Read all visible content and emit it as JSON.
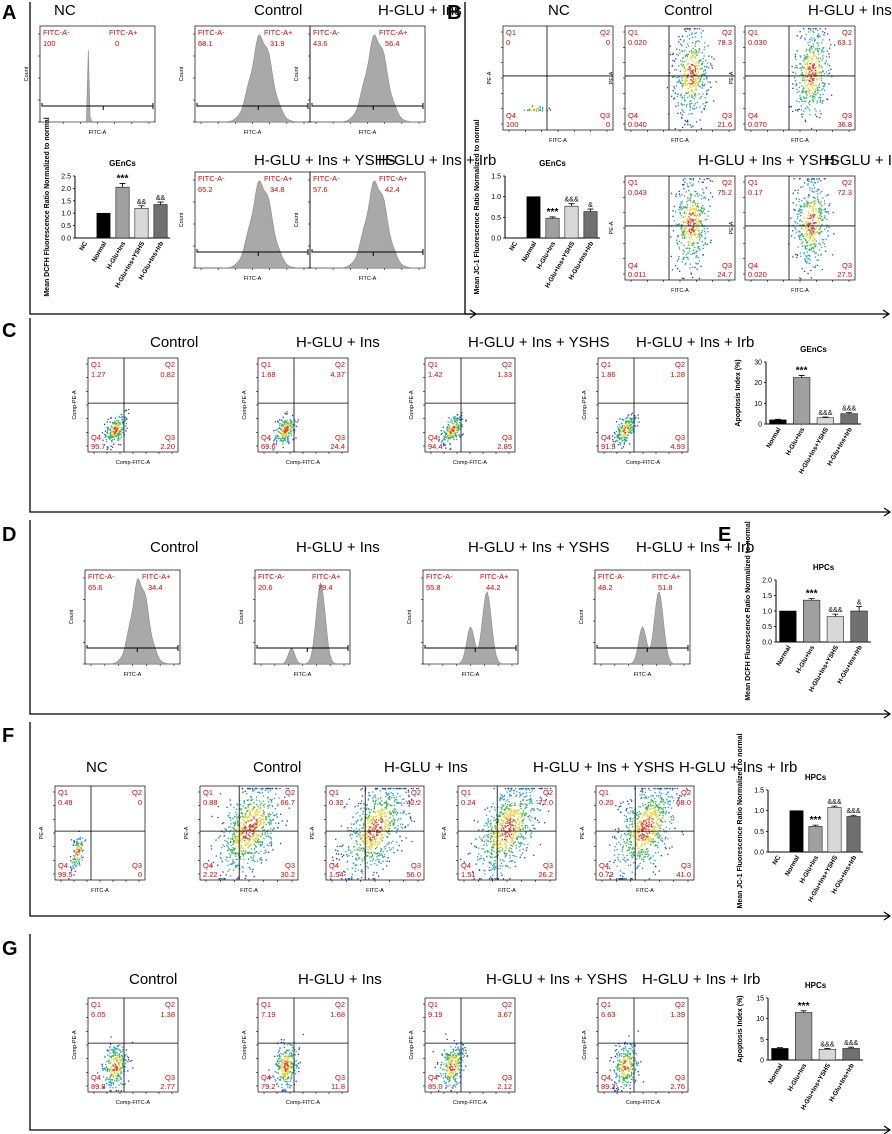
{
  "panel_letters": [
    "A",
    "B",
    "C",
    "D",
    "E",
    "F",
    "G"
  ],
  "bar_label": "GEnCs",
  "chart_data": [
    {
      "id": "A-NC",
      "type": "histogram",
      "title": "NC",
      "gate": [
        "FITC-A-",
        "FITC-A+"
      ],
      "values": [
        "100",
        "0"
      ],
      "xlabel": "FITC-A",
      "ylabel": "Count",
      "shape": "spike"
    },
    {
      "id": "A-Ctrl",
      "type": "histogram",
      "title": "Control",
      "gate": [
        "FITC-A-",
        "FITC-A+"
      ],
      "values": [
        "68.1",
        "31.9"
      ],
      "xlabel": "FITC-A",
      "ylabel": "Count",
      "shape": "wide"
    },
    {
      "id": "A-HGI",
      "type": "histogram",
      "title": "H-GLU + Ins",
      "gate": [
        "FITC-A-",
        "FITC-A+"
      ],
      "values": [
        "43.6",
        "56.4"
      ],
      "xlabel": "FITC-A",
      "ylabel": "Count",
      "shape": "wide"
    },
    {
      "id": "A-YSHS",
      "type": "histogram",
      "title": "H-GLU + Ins + YSHS",
      "gate": [
        "FITC-A-",
        "FITC-A+"
      ],
      "values": [
        "65.2",
        "34.8"
      ],
      "xlabel": "FITC-A",
      "ylabel": "Count",
      "shape": "wide"
    },
    {
      "id": "A-Irb",
      "type": "histogram",
      "title": "H-GLU + Ins + Irb",
      "gate": [
        "FITC-A-",
        "FITC-A+"
      ],
      "values": [
        "57.6",
        "42.4"
      ],
      "xlabel": "FITC-A",
      "ylabel": "Count",
      "shape": "wide"
    },
    {
      "id": "A-bar",
      "type": "bar",
      "title": "GEnCs",
      "ylabel": "Mean DCFH Fluorescence Ratio Normalized to normal",
      "categories": [
        "NC",
        "Normal",
        "H-Glu+Ins",
        "H-Glu+Ins+YSHS",
        "H-Glu+Ins+Irb"
      ],
      "values": [
        0,
        1.0,
        2.05,
        1.2,
        1.35
      ],
      "errors": [
        0,
        0,
        0.15,
        0.1,
        0.1
      ],
      "annotations": [
        "",
        "",
        "***",
        "&&",
        "&&"
      ],
      "colors": [
        "#000000",
        "#000000",
        "#a0a0a0",
        "#d8d8d8",
        "#707070"
      ],
      "yticks": [
        "0.0",
        "0.5",
        "1.0",
        "1.5",
        "2.0",
        "2.5"
      ],
      "ylim": [
        0,
        2.5
      ]
    },
    {
      "id": "B-NC",
      "type": "quadrant",
      "title": "NC",
      "xlabel": "FITC-A",
      "ylabel": "PE-A",
      "quads": [
        "Q1",
        "Q2",
        "Q3",
        "Q4"
      ],
      "values": [
        "0",
        "0",
        "0",
        "100"
      ],
      "cloud": "tiny"
    },
    {
      "id": "B-Ctrl",
      "type": "quadrant",
      "title": "Control",
      "xlabel": "FITC-A",
      "ylabel": "PE-A",
      "quads": [
        "Q1",
        "Q2",
        "Q3",
        "Q4"
      ],
      "values": [
        "0.020",
        "78.3",
        "21.6",
        "0.040"
      ],
      "cloud": "bright"
    },
    {
      "id": "B-HGI",
      "type": "quadrant",
      "title": "H-GLU + Ins",
      "xlabel": "FITC-A",
      "ylabel": "PE-A",
      "quads": [
        "Q1",
        "Q2",
        "Q3",
        "Q4"
      ],
      "values": [
        "0.030",
        "63.1",
        "36.8",
        "0.070"
      ],
      "cloud": "bright"
    },
    {
      "id": "B-YSHS",
      "type": "quadrant",
      "title": "H-GLU + Ins + YSHS",
      "xlabel": "FITC-A",
      "ylabel": "PE-A",
      "quads": [
        "Q1",
        "Q2",
        "Q3",
        "Q4"
      ],
      "values": [
        "0.043",
        "75.2",
        "24.7",
        "0.011"
      ],
      "cloud": "bright"
    },
    {
      "id": "B-Irb",
      "type": "quadrant",
      "title": "H-GLU + Ins + Irb",
      "xlabel": "FITC-A",
      "ylabel": "PE-A",
      "quads": [
        "Q1",
        "Q2",
        "Q3",
        "Q4"
      ],
      "values": [
        "0.17",
        "72.3",
        "27.5",
        "0.020"
      ],
      "cloud": "bright"
    },
    {
      "id": "B-bar",
      "type": "bar",
      "title": "GEnCs",
      "ylabel": "Mean JC-1 Fluorescence Ratio Normalized to normal",
      "categories": [
        "NC",
        "Normal",
        "H-Glu+Ins",
        "H-Glu+Ins+YSHS",
        "H-Glu+Ins+Irb"
      ],
      "values": [
        0,
        1.0,
        0.48,
        0.77,
        0.64
      ],
      "errors": [
        0,
        0,
        0.03,
        0.06,
        0.06
      ],
      "annotations": [
        "",
        "",
        "***",
        "&&&",
        "&"
      ],
      "colors": [
        "#000000",
        "#000000",
        "#a0a0a0",
        "#d8d8d8",
        "#707070"
      ],
      "yticks": [
        "0.0",
        "0.5",
        "1.0",
        "1.5"
      ],
      "ylim": [
        0,
        1.5
      ]
    },
    {
      "id": "C-Ctrl",
      "type": "quadrant",
      "title": "Control",
      "xlabel": "Comp-FITC-A",
      "ylabel": "Comp-PE-A",
      "quads": [
        "Q1",
        "Q2",
        "Q3",
        "Q4"
      ],
      "values": [
        "1.27",
        "0.82",
        "2.20",
        "95.7"
      ],
      "cloud": "low"
    },
    {
      "id": "C-HGI",
      "type": "quadrant",
      "title": "H-GLU + Ins",
      "xlabel": "Comp-FITC-A",
      "ylabel": "Comp-PE-A",
      "quads": [
        "Q1",
        "Q2",
        "Q3",
        "Q4"
      ],
      "values": [
        "1.68",
        "4.37",
        "24.4",
        "69.6"
      ],
      "cloud": "low"
    },
    {
      "id": "C-YSHS",
      "type": "quadrant",
      "title": "H-GLU + Ins + YSHS",
      "xlabel": "Comp-FITC-A",
      "ylabel": "Comp-PE-A",
      "quads": [
        "Q1",
        "Q2",
        "Q3",
        "Q4"
      ],
      "values": [
        "1.42",
        "1.33",
        "2.85",
        "94.4"
      ],
      "cloud": "low"
    },
    {
      "id": "C-Irb",
      "type": "quadrant",
      "title": "H-GLU + Ins + Irb",
      "xlabel": "Comp-FITC-A",
      "ylabel": "Comp-PE-A",
      "quads": [
        "Q1",
        "Q2",
        "Q3",
        "Q4"
      ],
      "values": [
        "1.86",
        "1.28",
        "4.93",
        "91.9"
      ],
      "cloud": "low"
    },
    {
      "id": "C-bar",
      "type": "bar",
      "title": "GEnCs",
      "ylabel": "Apoptosis Index (%)",
      "categories": [
        "Normal",
        "H-Glu+Ins",
        "H-Glu+Ins+YSHS",
        "H-Glu+Ins+Irb"
      ],
      "values": [
        2,
        22.5,
        3,
        5
      ],
      "errors": [
        0.3,
        1,
        0.4,
        0.5
      ],
      "annotations": [
        "",
        "***",
        "&&&",
        "&&&"
      ],
      "colors": [
        "#000000",
        "#a0a0a0",
        "#d8d8d8",
        "#707070"
      ],
      "yticks": [
        "0",
        "10",
        "20",
        "30"
      ],
      "ylim": [
        0,
        30
      ]
    },
    {
      "id": "D-Ctrl",
      "type": "histogram",
      "title": "Control",
      "gate": [
        "FITC-A-",
        "FITC-A+"
      ],
      "values": [
        "65.6",
        "34.4"
      ],
      "xlabel": "FITC-A",
      "ylabel": "Count",
      "shape": "wide"
    },
    {
      "id": "D-HGI",
      "type": "histogram",
      "title": "H-GLU + Ins",
      "gate": [
        "FITC-A-",
        "FITC-A+"
      ],
      "values": [
        "20.6",
        "79.4"
      ],
      "xlabel": "FITC-A",
      "ylabel": "Count",
      "shape": "right"
    },
    {
      "id": "D-YSHS",
      "type": "histogram",
      "title": "H-GLU + Ins + YSHS",
      "gate": [
        "FITC-A-",
        "FITC-A+"
      ],
      "values": [
        "55.8",
        "44.2"
      ],
      "xlabel": "FITC-A",
      "ylabel": "Count",
      "shape": "double"
    },
    {
      "id": "D-Irb",
      "type": "histogram",
      "title": "H-GLU + Ins + Irb",
      "gate": [
        "FITC-A-",
        "FITC-A+"
      ],
      "values": [
        "48.2",
        "51.8"
      ],
      "xlabel": "FITC-A",
      "ylabel": "Count",
      "shape": "double"
    },
    {
      "id": "E-bar",
      "type": "bar",
      "title": "HPCs",
      "ylabel": "Mean DCFH Fluorescence Ratio Normalized to normal",
      "categories": [
        "Normal",
        "H-Glu+Ins",
        "H-Glu+Ins+YSHS",
        "H-Glu+Ins+Irb"
      ],
      "values": [
        1.0,
        1.35,
        0.82,
        1.0
      ],
      "errors": [
        0,
        0.05,
        0.08,
        0.15
      ],
      "annotations": [
        "",
        "***",
        "&&&",
        "&"
      ],
      "colors": [
        "#000000",
        "#a0a0a0",
        "#d8d8d8",
        "#707070"
      ],
      "yticks": [
        "0.0",
        "0.5",
        "1.0",
        "1.5",
        "2.0"
      ],
      "ylim": [
        0,
        2.0
      ]
    },
    {
      "id": "F-NC",
      "type": "quadrant",
      "title": "NC",
      "xlabel": "FITC-A",
      "ylabel": "PE-A",
      "quads": [
        "Q1",
        "Q2",
        "Q3",
        "Q4"
      ],
      "values": [
        "0.49",
        "0",
        "0",
        "99.5"
      ],
      "cloud": "small"
    },
    {
      "id": "F-Ctrl",
      "type": "quadrant",
      "title": "Control",
      "xlabel": "FITC-A",
      "ylabel": "PE-A",
      "quads": [
        "Q1",
        "Q2",
        "Q3",
        "Q4"
      ],
      "values": [
        "0.88",
        "66.7",
        "30.2",
        "2.22"
      ],
      "cloud": "diag"
    },
    {
      "id": "F-HGI",
      "type": "quadrant",
      "title": "H-GLU + Ins",
      "xlabel": "FITC-A",
      "ylabel": "PE-A",
      "quads": [
        "Q1",
        "Q2",
        "Q3",
        "Q4"
      ],
      "values": [
        "0.32",
        "42.2",
        "56.0",
        "1.54"
      ],
      "cloud": "diag"
    },
    {
      "id": "F-YSHS",
      "type": "quadrant",
      "title": "H-GLU + Ins + YSHS",
      "xlabel": "FITC-A",
      "ylabel": "PE-A",
      "quads": [
        "Q1",
        "Q2",
        "Q3",
        "Q4"
      ],
      "values": [
        "0.24",
        "72.0",
        "26.2",
        "1.51"
      ],
      "cloud": "diag"
    },
    {
      "id": "F-Irb",
      "type": "quadrant",
      "title": "H-GLU + Ins + Irb",
      "xlabel": "FITC-A",
      "ylabel": "PE-A",
      "quads": [
        "Q1",
        "Q2",
        "Q3",
        "Q4"
      ],
      "values": [
        "0.20",
        "58.0",
        "41.0",
        "0.72"
      ],
      "cloud": "diag"
    },
    {
      "id": "F-bar",
      "type": "bar",
      "title": "HPCs",
      "ylabel": "Mean JC-1 Fluorescence Ratio Normalized to normal",
      "categories": [
        "NC",
        "Normal",
        "H-Glu+Ins",
        "H-Glu+Ins+YSHS",
        "H-Glu+Ins+Irb"
      ],
      "values": [
        0,
        1.0,
        0.62,
        1.08,
        0.86
      ],
      "errors": [
        0,
        0,
        0.03,
        0.03,
        0.03
      ],
      "annotations": [
        "",
        "",
        "***",
        "&&&",
        "&&&"
      ],
      "colors": [
        "#000000",
        "#000000",
        "#a0a0a0",
        "#d8d8d8",
        "#707070"
      ],
      "yticks": [
        "0.0",
        "0.5",
        "1.0",
        "1.5"
      ],
      "ylim": [
        0,
        1.5
      ]
    },
    {
      "id": "G-Ctrl",
      "type": "quadrant",
      "title": "Control",
      "xlabel": "Comp-FITC-A",
      "ylabel": "Comp-PE-A",
      "quads": [
        "Q1",
        "Q2",
        "Q3",
        "Q4"
      ],
      "values": [
        "6.05",
        "1.38",
        "2.77",
        "89.8"
      ],
      "cloud": "lowtall"
    },
    {
      "id": "G-HGI",
      "type": "quadrant",
      "title": "H-GLU + Ins",
      "xlabel": "Comp-FITC-A",
      "ylabel": "Comp-PE-A",
      "quads": [
        "Q1",
        "Q2",
        "Q3",
        "Q4"
      ],
      "values": [
        "7.19",
        "1.68",
        "11.8",
        "79.2"
      ],
      "cloud": "lowtall"
    },
    {
      "id": "G-YSHS",
      "type": "quadrant",
      "title": "H-GLU + Ins + YSHS",
      "xlabel": "Comp-FITC-A",
      "ylabel": "Comp-PE-A",
      "quads": [
        "Q1",
        "Q2",
        "Q3",
        "Q4"
      ],
      "values": [
        "9.19",
        "3.67",
        "2.12",
        "85.0"
      ],
      "cloud": "lowtall"
    },
    {
      "id": "G-Irb",
      "type": "quadrant",
      "title": "H-GLU + Ins + Irb",
      "xlabel": "Comp-FITC-A",
      "ylabel": "Comp-PE-A",
      "quads": [
        "Q1",
        "Q2",
        "Q3",
        "Q4"
      ],
      "values": [
        "6.63",
        "1.39",
        "2.76",
        "89.2"
      ],
      "cloud": "lowtall"
    },
    {
      "id": "G-bar",
      "type": "bar",
      "title": "HPCs",
      "ylabel": "Apoptosis Index (%)",
      "categories": [
        "Normal",
        "H-Glu+Ins",
        "H-Glu+Ins+YSHS",
        "H-Glu+Ins+Irb"
      ],
      "values": [
        2.8,
        11.5,
        2.6,
        2.8
      ],
      "errors": [
        0.2,
        0.4,
        0.2,
        0.3
      ],
      "annotations": [
        "",
        "***",
        "&&&",
        "&&&"
      ],
      "colors": [
        "#000000",
        "#a0a0a0",
        "#d8d8d8",
        "#707070"
      ],
      "yticks": [
        "0",
        "5",
        "10",
        "15"
      ],
      "ylim": [
        0,
        15
      ]
    }
  ]
}
